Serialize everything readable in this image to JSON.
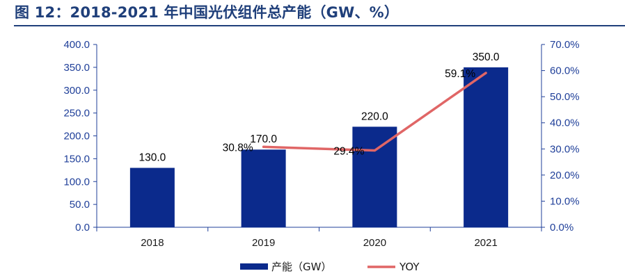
{
  "title": "图 12：2018-2021 年中国光伏组件总产能（GW、%）",
  "colors": {
    "bar": "#0b2a8c",
    "line": "#e06666",
    "axis": "#1f3f99",
    "title": "#1f3f7a"
  },
  "chart_data": {
    "type": "bar",
    "categories": [
      "2018",
      "2019",
      "2020",
      "2021"
    ],
    "series": [
      {
        "name": "产能（GW）",
        "type": "bar",
        "axis": "left",
        "values": [
          130.0,
          170.0,
          220.0,
          350.0
        ],
        "labels": [
          "130.0",
          "170.0",
          "220.0",
          "350.0"
        ]
      },
      {
        "name": "YOY",
        "type": "line",
        "axis": "right",
        "x": [
          "2019",
          "2020",
          "2021"
        ],
        "values": [
          30.8,
          29.4,
          59.1
        ],
        "labels": [
          "30.8%",
          "29.4%",
          "59.1%"
        ]
      }
    ],
    "y_left": {
      "range": [
        0,
        400
      ],
      "ticks": [
        "0.0",
        "50.0",
        "100.0",
        "150.0",
        "200.0",
        "250.0",
        "300.0",
        "350.0",
        "400.0"
      ]
    },
    "y_right": {
      "range": [
        0,
        70
      ],
      "ticks": [
        "0.0%",
        "10.0%",
        "20.0%",
        "30.0%",
        "40.0%",
        "50.0%",
        "60.0%",
        "70.0%"
      ]
    },
    "grid": false,
    "legend_position": "bottom"
  }
}
